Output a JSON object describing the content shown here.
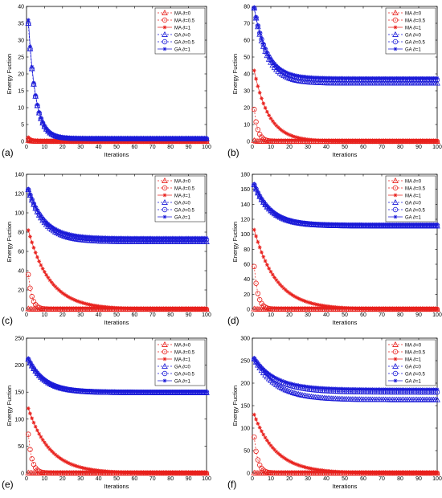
{
  "colors": {
    "ma": "#e8201c",
    "ga": "#1a1ad8"
  },
  "legend_labels": [
    "MA ∂=0",
    "MA ∂=0.5",
    "MA ∂=1",
    "GA ∂=0",
    "GA ∂=0.5",
    "GA ∂=1"
  ],
  "chart_data": [
    {
      "type": "line",
      "panel_label": "(a)",
      "xlabel": "Iterations",
      "ylabel": "Energy Fuction",
      "xlim": [
        0,
        100
      ],
      "ylim": [
        0,
        40
      ],
      "xticks": [
        0,
        10,
        20,
        30,
        40,
        50,
        60,
        70,
        80,
        90,
        100
      ],
      "yticks": [
        0,
        5,
        10,
        15,
        20,
        25,
        30,
        35,
        40
      ],
      "legend": "top-right",
      "series": [
        {
          "name": "MA ∂=0",
          "start": 0.3,
          "end": 0,
          "decay": 1.5
        },
        {
          "name": "MA ∂=0.5",
          "start": 0.8,
          "end": 0,
          "decay": 1.5
        },
        {
          "name": "MA ∂=1",
          "start": 1.2,
          "end": 0,
          "decay": 2
        },
        {
          "name": "GA ∂=0",
          "start": 35,
          "end": 0.8,
          "decay": 4
        },
        {
          "name": "GA ∂=0.5",
          "start": 35,
          "end": 0.8,
          "decay": 4
        },
        {
          "name": "GA ∂=1",
          "start": 36,
          "end": 0.8,
          "decay": 4
        }
      ]
    },
    {
      "type": "line",
      "panel_label": "(b)",
      "xlabel": "Iterations",
      "ylabel": "Energy Fuction",
      "xlim": [
        0,
        100
      ],
      "ylim": [
        0,
        80
      ],
      "xticks": [
        0,
        10,
        20,
        30,
        40,
        50,
        60,
        70,
        80,
        90,
        100
      ],
      "yticks": [
        0,
        10,
        20,
        30,
        40,
        50,
        60,
        70,
        80
      ],
      "legend": "top-right",
      "series": [
        {
          "name": "MA ∂=0",
          "start": 0.5,
          "end": 0,
          "decay": 1
        },
        {
          "name": "MA ∂=0.5",
          "start": 19,
          "end": 0,
          "decay": 2
        },
        {
          "name": "MA ∂=1",
          "start": 42,
          "end": 0,
          "decay": 8
        },
        {
          "name": "GA ∂=0",
          "start": 79,
          "end": 34.5,
          "decay": 7
        },
        {
          "name": "GA ∂=0.5",
          "start": 79,
          "end": 36.5,
          "decay": 7
        },
        {
          "name": "GA ∂=1",
          "start": 79,
          "end": 37.5,
          "decay": 7
        }
      ]
    },
    {
      "type": "line",
      "panel_label": "(c)",
      "xlabel": "Iterations",
      "ylabel": "Energy Fuction",
      "xlim": [
        0,
        100
      ],
      "ylim": [
        0,
        140
      ],
      "xticks": [
        0,
        10,
        20,
        30,
        40,
        50,
        60,
        70,
        80,
        90,
        100
      ],
      "yticks": [
        0,
        20,
        40,
        60,
        80,
        100,
        120,
        140
      ],
      "legend": "top-right",
      "series": [
        {
          "name": "MA ∂=0",
          "start": 0.5,
          "end": 0,
          "decay": 1
        },
        {
          "name": "MA ∂=0.5",
          "start": 36,
          "end": 0,
          "decay": 2
        },
        {
          "name": "MA ∂=1",
          "start": 82,
          "end": 0,
          "decay": 12
        },
        {
          "name": "GA ∂=0",
          "start": 124,
          "end": 70,
          "decay": 9
        },
        {
          "name": "GA ∂=0.5",
          "start": 124,
          "end": 72,
          "decay": 9
        },
        {
          "name": "GA ∂=1",
          "start": 124,
          "end": 74,
          "decay": 9
        }
      ]
    },
    {
      "type": "line",
      "panel_label": "(d)",
      "xlabel": "Iterations",
      "ylabel": "Energy Fuction",
      "xlim": [
        0,
        100
      ],
      "ylim": [
        0,
        180
      ],
      "xticks": [
        0,
        10,
        20,
        30,
        40,
        50,
        60,
        70,
        80,
        90,
        100
      ],
      "yticks": [
        0,
        20,
        40,
        60,
        80,
        100,
        120,
        140,
        160,
        180
      ],
      "legend": "top-right",
      "series": [
        {
          "name": "MA ∂=0",
          "start": 0.5,
          "end": 0,
          "decay": 1
        },
        {
          "name": "MA ∂=0.5",
          "start": 57,
          "end": 0,
          "decay": 2
        },
        {
          "name": "MA ∂=1",
          "start": 106,
          "end": 0,
          "decay": 12
        },
        {
          "name": "GA ∂=0",
          "start": 166,
          "end": 111,
          "decay": 9
        },
        {
          "name": "GA ∂=0.5",
          "start": 166,
          "end": 112,
          "decay": 9
        },
        {
          "name": "GA ∂=1",
          "start": 166,
          "end": 113,
          "decay": 9
        }
      ]
    },
    {
      "type": "line",
      "panel_label": "(e)",
      "xlabel": "Iterations",
      "ylabel": "Energy Fuction",
      "xlim": [
        0,
        100
      ],
      "ylim": [
        0,
        250
      ],
      "xticks": [
        0,
        10,
        20,
        30,
        40,
        50,
        60,
        70,
        80,
        90,
        100
      ],
      "yticks": [
        0,
        50,
        100,
        150,
        200,
        250
      ],
      "legend": "top-right",
      "series": [
        {
          "name": "MA ∂=0",
          "start": 0.5,
          "end": 0,
          "decay": 1
        },
        {
          "name": "MA ∂=0.5",
          "start": 72,
          "end": 0,
          "decay": 2
        },
        {
          "name": "MA ∂=1",
          "start": 120,
          "end": 0,
          "decay": 12
        },
        {
          "name": "GA ∂=0",
          "start": 211,
          "end": 149,
          "decay": 9
        },
        {
          "name": "GA ∂=0.5",
          "start": 211,
          "end": 150,
          "decay": 9
        },
        {
          "name": "GA ∂=1",
          "start": 211,
          "end": 151,
          "decay": 9
        }
      ]
    },
    {
      "type": "line",
      "panel_label": "(f)",
      "xlabel": "Iterations",
      "ylabel": "Energy Fuction",
      "xlim": [
        0,
        100
      ],
      "ylim": [
        0,
        300
      ],
      "xticks": [
        0,
        10,
        20,
        30,
        40,
        50,
        60,
        70,
        80,
        90,
        100
      ],
      "yticks": [
        0,
        50,
        100,
        150,
        200,
        250,
        300
      ],
      "legend": "top-right",
      "series": [
        {
          "name": "MA ∂=0",
          "start": 0.5,
          "end": 0,
          "decay": 1
        },
        {
          "name": "MA ∂=0.5",
          "start": 80,
          "end": 0,
          "decay": 2
        },
        {
          "name": "MA ∂=1",
          "start": 130,
          "end": 0,
          "decay": 12
        },
        {
          "name": "GA ∂=0",
          "start": 254,
          "end": 163,
          "decay": 12
        },
        {
          "name": "GA ∂=0.5",
          "start": 254,
          "end": 180,
          "decay": 12
        },
        {
          "name": "GA ∂=1",
          "start": 254,
          "end": 186,
          "decay": 12
        }
      ]
    }
  ]
}
